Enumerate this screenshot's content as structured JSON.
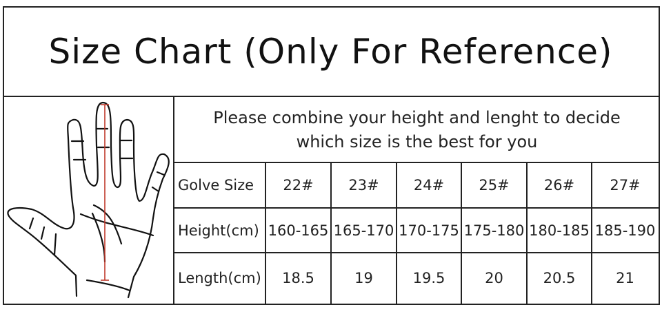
{
  "title": "Size Chart (Only For Reference)",
  "note": {
    "line1": "Please combine your height and lenght to decide",
    "line2": "which size is the best for you"
  },
  "table": {
    "rows": [
      {
        "label": "Golve Size",
        "values": [
          "22#",
          "23#",
          "24#",
          "25#",
          "26#",
          "27#"
        ]
      },
      {
        "label": "Height(cm)",
        "values": [
          "160-165",
          "165-170",
          "170-175",
          "175-180",
          "180-185",
          "185-190"
        ]
      },
      {
        "label": "Length(cm)",
        "values": [
          "18.5",
          "19",
          "19.5",
          "20",
          "20.5",
          "21"
        ]
      }
    ]
  },
  "colors": {
    "measure_line": "#c0392b",
    "border": "#222222"
  }
}
